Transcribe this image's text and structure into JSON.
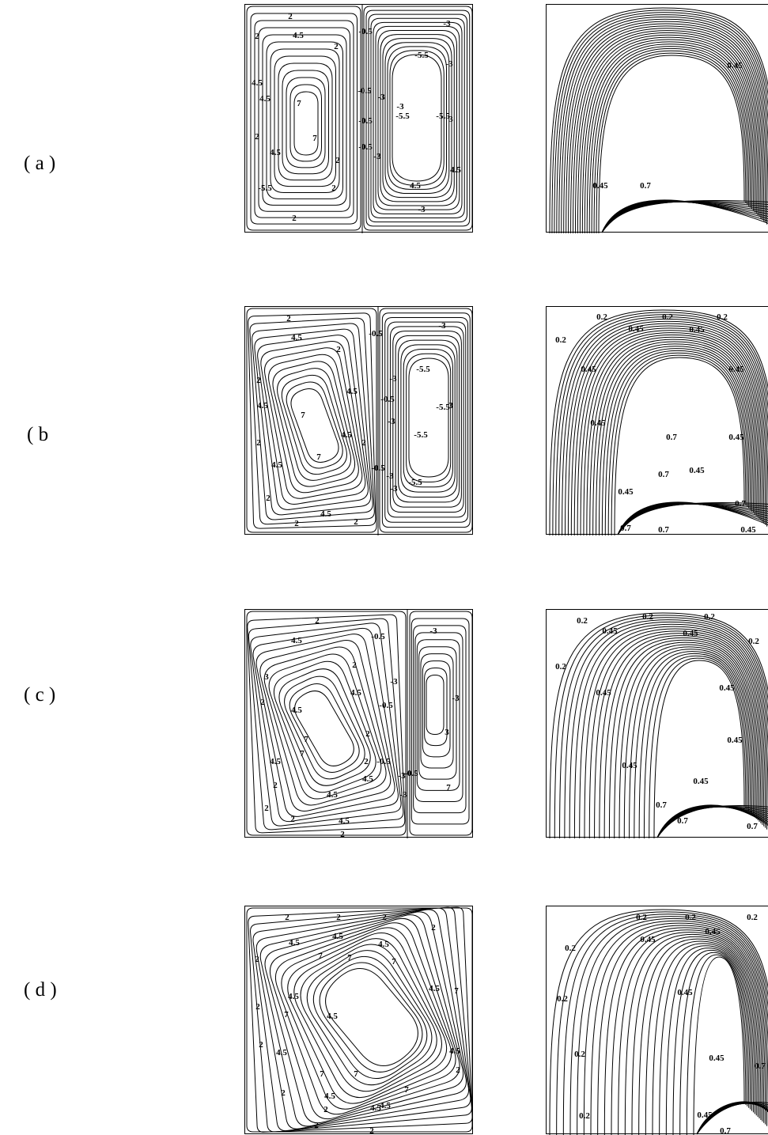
{
  "rows": [
    {
      "label": "( a )",
      "stream_labels": [
        "2",
        "-0.5",
        "-3",
        "4.5",
        "2",
        "-5.5",
        "-3",
        "4.5",
        "-0.5",
        "-3",
        "2",
        "4.5",
        "7",
        "-3",
        "-0.5",
        "-5.5",
        "-5.5",
        "3",
        "2",
        "4.5",
        "7",
        "-0.5",
        "2",
        "-3",
        "4.5",
        "-5.5",
        "2",
        "4.5",
        "-3",
        "2"
      ],
      "temp_labels": [
        "0.45",
        "0.45",
        "0.7"
      ]
    },
    {
      "label": "( b",
      "stream_labels": [
        "2",
        "-0.5",
        "-3",
        "4.5",
        "2",
        "-5.5",
        "-3",
        "4.5",
        "-0.5",
        "-3",
        "2",
        "4.5",
        "7",
        "-5.5",
        "-5.5",
        "3",
        "2",
        "4.5",
        "7",
        "-0.5",
        "-3",
        "2",
        "-5.5",
        "4.5",
        "-3",
        "2",
        "4.5",
        "2",
        "2"
      ],
      "temp_labels": [
        "0.2",
        "0.2",
        "0.2",
        "0.45",
        "0.45",
        "0.2",
        "0.45",
        "0.45",
        "0.45",
        "0.45",
        "0.7",
        "0.45",
        "0.7",
        "0.45",
        "0.7",
        "0.7",
        "0.45",
        "0.7"
      ]
    },
    {
      "label": "( c )",
      "stream_labels": [
        "2",
        "-0.5",
        "-3",
        "4.5",
        "2",
        "-3",
        "4.5",
        "2",
        "-0.5",
        "-3",
        "3",
        "2",
        "4.5",
        "7",
        "7",
        "4.5",
        "2",
        "-0.5",
        "-3",
        "4.5",
        "2",
        "-0.5",
        "-3",
        "2",
        "4.5",
        "7",
        "3",
        "2",
        "4.5",
        "2"
      ],
      "temp_labels": [
        "0.2",
        "0.2",
        "0.2",
        "0.45",
        "0.45",
        "0.2",
        "0.2",
        "0.45",
        "0.45",
        "0.45",
        "0.45",
        "0.7",
        "0.45",
        "0.7",
        "0.7"
      ]
    },
    {
      "label": "( d )",
      "stream_labels": [
        "2",
        "2",
        "2",
        "2",
        "4.5",
        "4.5",
        "4.5",
        "2",
        "2",
        "7",
        "7",
        "7",
        "4.5",
        "4.5",
        "7",
        "7",
        "4.5",
        "2",
        "4.5",
        "7",
        "7",
        "4.5",
        "2",
        "4.5",
        "7",
        "4.5",
        "2",
        "2",
        "4.5",
        "2",
        "2"
      ],
      "temp_labels": [
        "0.2",
        "0.2",
        "0.2",
        "0.2",
        "0.45",
        "0.45",
        "0.2",
        "0.45",
        "0.2",
        "0.45",
        "0.2",
        "0.45",
        "0.7",
        "0.7"
      ]
    }
  ]
}
